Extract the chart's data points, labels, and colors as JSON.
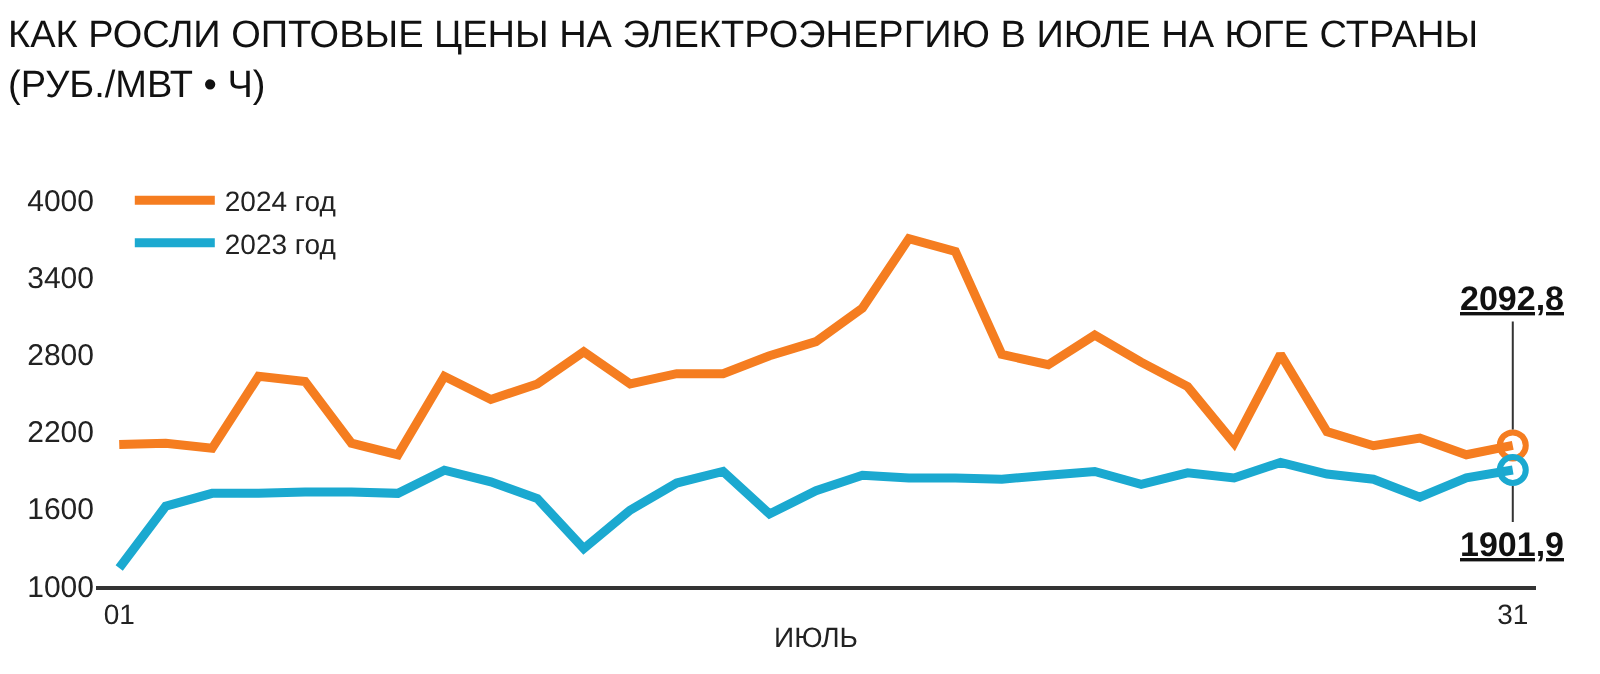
{
  "chart_data": {
    "type": "line",
    "title": "КАК РОСЛИ ОПТОВЫЕ ЦЕНЫ НА ЭЛЕКТРОЭНЕРГИЮ В ИЮЛЕ НА ЮГЕ СТРАНЫ\n(РУБ./МВТ • Ч)",
    "xlabel": "ИЮЛЬ",
    "x": [
      1,
      2,
      3,
      4,
      5,
      6,
      7,
      8,
      9,
      10,
      11,
      12,
      13,
      14,
      15,
      16,
      17,
      18,
      19,
      20,
      21,
      22,
      23,
      24,
      25,
      26,
      27,
      28,
      29,
      30,
      31
    ],
    "series": [
      {
        "name": "2024 год",
        "color": "#f57d20",
        "values": [
          2100,
          2110,
          2070,
          2630,
          2590,
          2110,
          2020,
          2630,
          2450,
          2570,
          2820,
          2570,
          2650,
          2650,
          2790,
          2900,
          3160,
          3700,
          3600,
          2800,
          2720,
          2950,
          2740,
          2550,
          2110,
          2800,
          2200,
          2090,
          2150,
          2020,
          2092.8
        ]
      },
      {
        "name": "2023 год",
        "color": "#1ba9d0",
        "values": [
          1140,
          1620,
          1720,
          1720,
          1730,
          1730,
          1720,
          1900,
          1810,
          1680,
          1290,
          1590,
          1800,
          1890,
          1560,
          1740,
          1860,
          1840,
          1840,
          1830,
          1860,
          1890,
          1790,
          1880,
          1840,
          1960,
          1870,
          1830,
          1690,
          1840,
          1901.9
        ]
      }
    ],
    "annotations": [
      {
        "text": "2092,8",
        "x": 31,
        "y": 2092.8
      },
      {
        "text": "1901,9",
        "x": 31,
        "y": 1901.9
      }
    ],
    "xlim": [
      0.5,
      31.5
    ],
    "xticks": [
      {
        "value": 1,
        "label": "01"
      },
      {
        "value": 31,
        "label": "31"
      }
    ],
    "ylim": [
      1000,
      4000
    ],
    "yticks": [
      1000,
      1600,
      2200,
      2800,
      3400,
      4000
    ],
    "grid": false,
    "legend": "top left",
    "line_style": "solid"
  }
}
